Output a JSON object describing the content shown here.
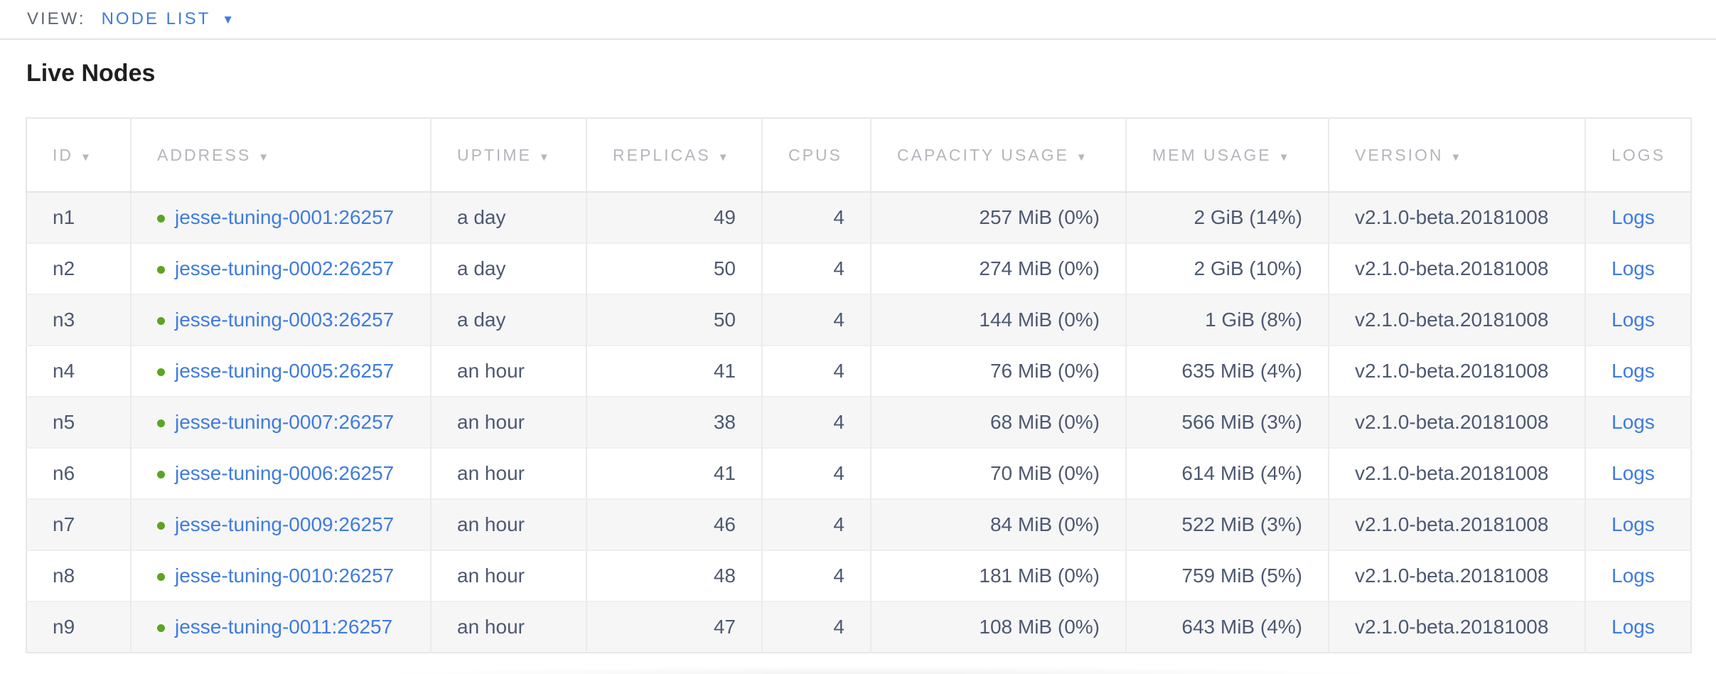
{
  "view_bar": {
    "label": "VIEW:",
    "selected": "NODE LIST",
    "caret_glyph": "▼"
  },
  "page": {
    "title": "Live Nodes"
  },
  "table": {
    "sort_arrow_glyph": "▼",
    "columns": [
      {
        "key": "id",
        "label": "ID",
        "sortable": true,
        "align": "left"
      },
      {
        "key": "address",
        "label": "ADDRESS",
        "sortable": true,
        "align": "left"
      },
      {
        "key": "uptime",
        "label": "UPTIME",
        "sortable": true,
        "align": "left"
      },
      {
        "key": "replicas",
        "label": "REPLICAS",
        "sortable": true,
        "align": "right"
      },
      {
        "key": "cpus",
        "label": "CPUS",
        "sortable": false,
        "align": "right"
      },
      {
        "key": "capacity",
        "label": "CAPACITY USAGE",
        "sortable": true,
        "align": "right"
      },
      {
        "key": "mem",
        "label": "MEM USAGE",
        "sortable": true,
        "align": "right"
      },
      {
        "key": "version",
        "label": "VERSION",
        "sortable": true,
        "align": "left"
      },
      {
        "key": "logs",
        "label": "LOGS",
        "sortable": false,
        "align": "left"
      }
    ],
    "rows": [
      {
        "id": "n1",
        "address": "jesse-tuning-0001:26257",
        "uptime": "a day",
        "replicas": "49",
        "cpus": "4",
        "capacity": "257 MiB (0%)",
        "mem": "2 GiB (14%)",
        "version": "v2.1.0-beta.20181008",
        "logs": "Logs"
      },
      {
        "id": "n2",
        "address": "jesse-tuning-0002:26257",
        "uptime": "a day",
        "replicas": "50",
        "cpus": "4",
        "capacity": "274 MiB (0%)",
        "mem": "2 GiB (10%)",
        "version": "v2.1.0-beta.20181008",
        "logs": "Logs"
      },
      {
        "id": "n3",
        "address": "jesse-tuning-0003:26257",
        "uptime": "a day",
        "replicas": "50",
        "cpus": "4",
        "capacity": "144 MiB (0%)",
        "mem": "1 GiB (8%)",
        "version": "v2.1.0-beta.20181008",
        "logs": "Logs"
      },
      {
        "id": "n4",
        "address": "jesse-tuning-0005:26257",
        "uptime": "an hour",
        "replicas": "41",
        "cpus": "4",
        "capacity": "76 MiB (0%)",
        "mem": "635 MiB (4%)",
        "version": "v2.1.0-beta.20181008",
        "logs": "Logs"
      },
      {
        "id": "n5",
        "address": "jesse-tuning-0007:26257",
        "uptime": "an hour",
        "replicas": "38",
        "cpus": "4",
        "capacity": "68 MiB (0%)",
        "mem": "566 MiB (3%)",
        "version": "v2.1.0-beta.20181008",
        "logs": "Logs"
      },
      {
        "id": "n6",
        "address": "jesse-tuning-0006:26257",
        "uptime": "an hour",
        "replicas": "41",
        "cpus": "4",
        "capacity": "70 MiB (0%)",
        "mem": "614 MiB (4%)",
        "version": "v2.1.0-beta.20181008",
        "logs": "Logs"
      },
      {
        "id": "n7",
        "address": "jesse-tuning-0009:26257",
        "uptime": "an hour",
        "replicas": "46",
        "cpus": "4",
        "capacity": "84 MiB (0%)",
        "mem": "522 MiB (3%)",
        "version": "v2.1.0-beta.20181008",
        "logs": "Logs"
      },
      {
        "id": "n8",
        "address": "jesse-tuning-0010:26257",
        "uptime": "an hour",
        "replicas": "48",
        "cpus": "4",
        "capacity": "181 MiB (0%)",
        "mem": "759 MiB (5%)",
        "version": "v2.1.0-beta.20181008",
        "logs": "Logs"
      },
      {
        "id": "n9",
        "address": "jesse-tuning-0011:26257",
        "uptime": "an hour",
        "replicas": "47",
        "cpus": "4",
        "capacity": "108 MiB (0%)",
        "mem": "643 MiB (4%)",
        "version": "v2.1.0-beta.20181008",
        "logs": "Logs"
      }
    ]
  },
  "colors": {
    "accent_blue": "#3e7be0",
    "status_green": "#5ba521",
    "header_gray": "#b4b6bb",
    "cell_text": "#4d5970",
    "stripe_gray": "#f6f6f7",
    "border_gray": "#ebebed"
  }
}
